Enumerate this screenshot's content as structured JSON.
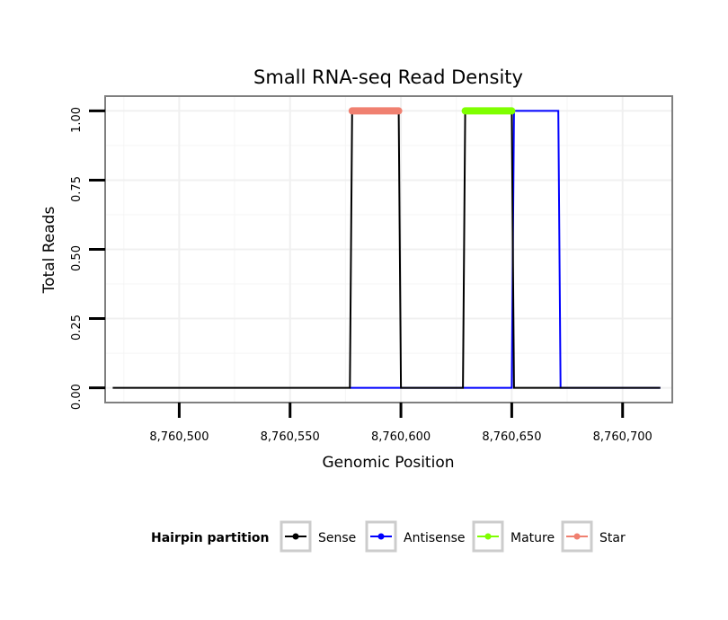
{
  "chart_data": {
    "type": "line",
    "title": "Small RNA-seq Read Density",
    "xlabel": "Genomic Position",
    "ylabel": "Total Reads",
    "xlim": [
      8760467,
      8760722
    ],
    "ylim": [
      -0.05,
      1.05
    ],
    "x_ticks": [
      8760500,
      8760550,
      8760600,
      8760650,
      8760700
    ],
    "x_tick_labels": [
      "8,760,500",
      "8,760,550",
      "8,760,600",
      "8,760,650",
      "8,760,700"
    ],
    "y_ticks": [
      0,
      0.25,
      0.5,
      0.75,
      1
    ],
    "y_tick_labels": [
      "0.00",
      "0.25",
      "0.50",
      "0.75",
      "1.00"
    ],
    "grid": true,
    "legend": {
      "title": "Hairpin partition",
      "position": "bottom",
      "entries": [
        "Sense",
        "Antisense",
        "Mature",
        "Star"
      ]
    },
    "series": [
      {
        "name": "Antisense",
        "color": "#0000ff",
        "style": "line",
        "x": [
          8760577,
          8760628,
          8760650,
          8760651,
          8760671,
          8760672,
          8760717
        ],
        "y": [
          0,
          0,
          0,
          1,
          1,
          0,
          0
        ]
      },
      {
        "name": "Sense",
        "color": "#000000",
        "style": "line",
        "x": [
          8760470,
          8760577,
          8760578,
          8760599,
          8760600,
          8760628,
          8760629,
          8760650,
          8760651,
          8760717
        ],
        "y": [
          0,
          0,
          1,
          1,
          0,
          0,
          1,
          1,
          0,
          0
        ]
      },
      {
        "name": "Mature",
        "color": "#7fff00",
        "style": "band",
        "x": [
          8760629,
          8760650
        ],
        "y": [
          1,
          1
        ]
      },
      {
        "name": "Star",
        "color": "#f08070",
        "style": "band",
        "x": [
          8760578,
          8760599
        ],
        "y": [
          1,
          1
        ]
      }
    ]
  }
}
